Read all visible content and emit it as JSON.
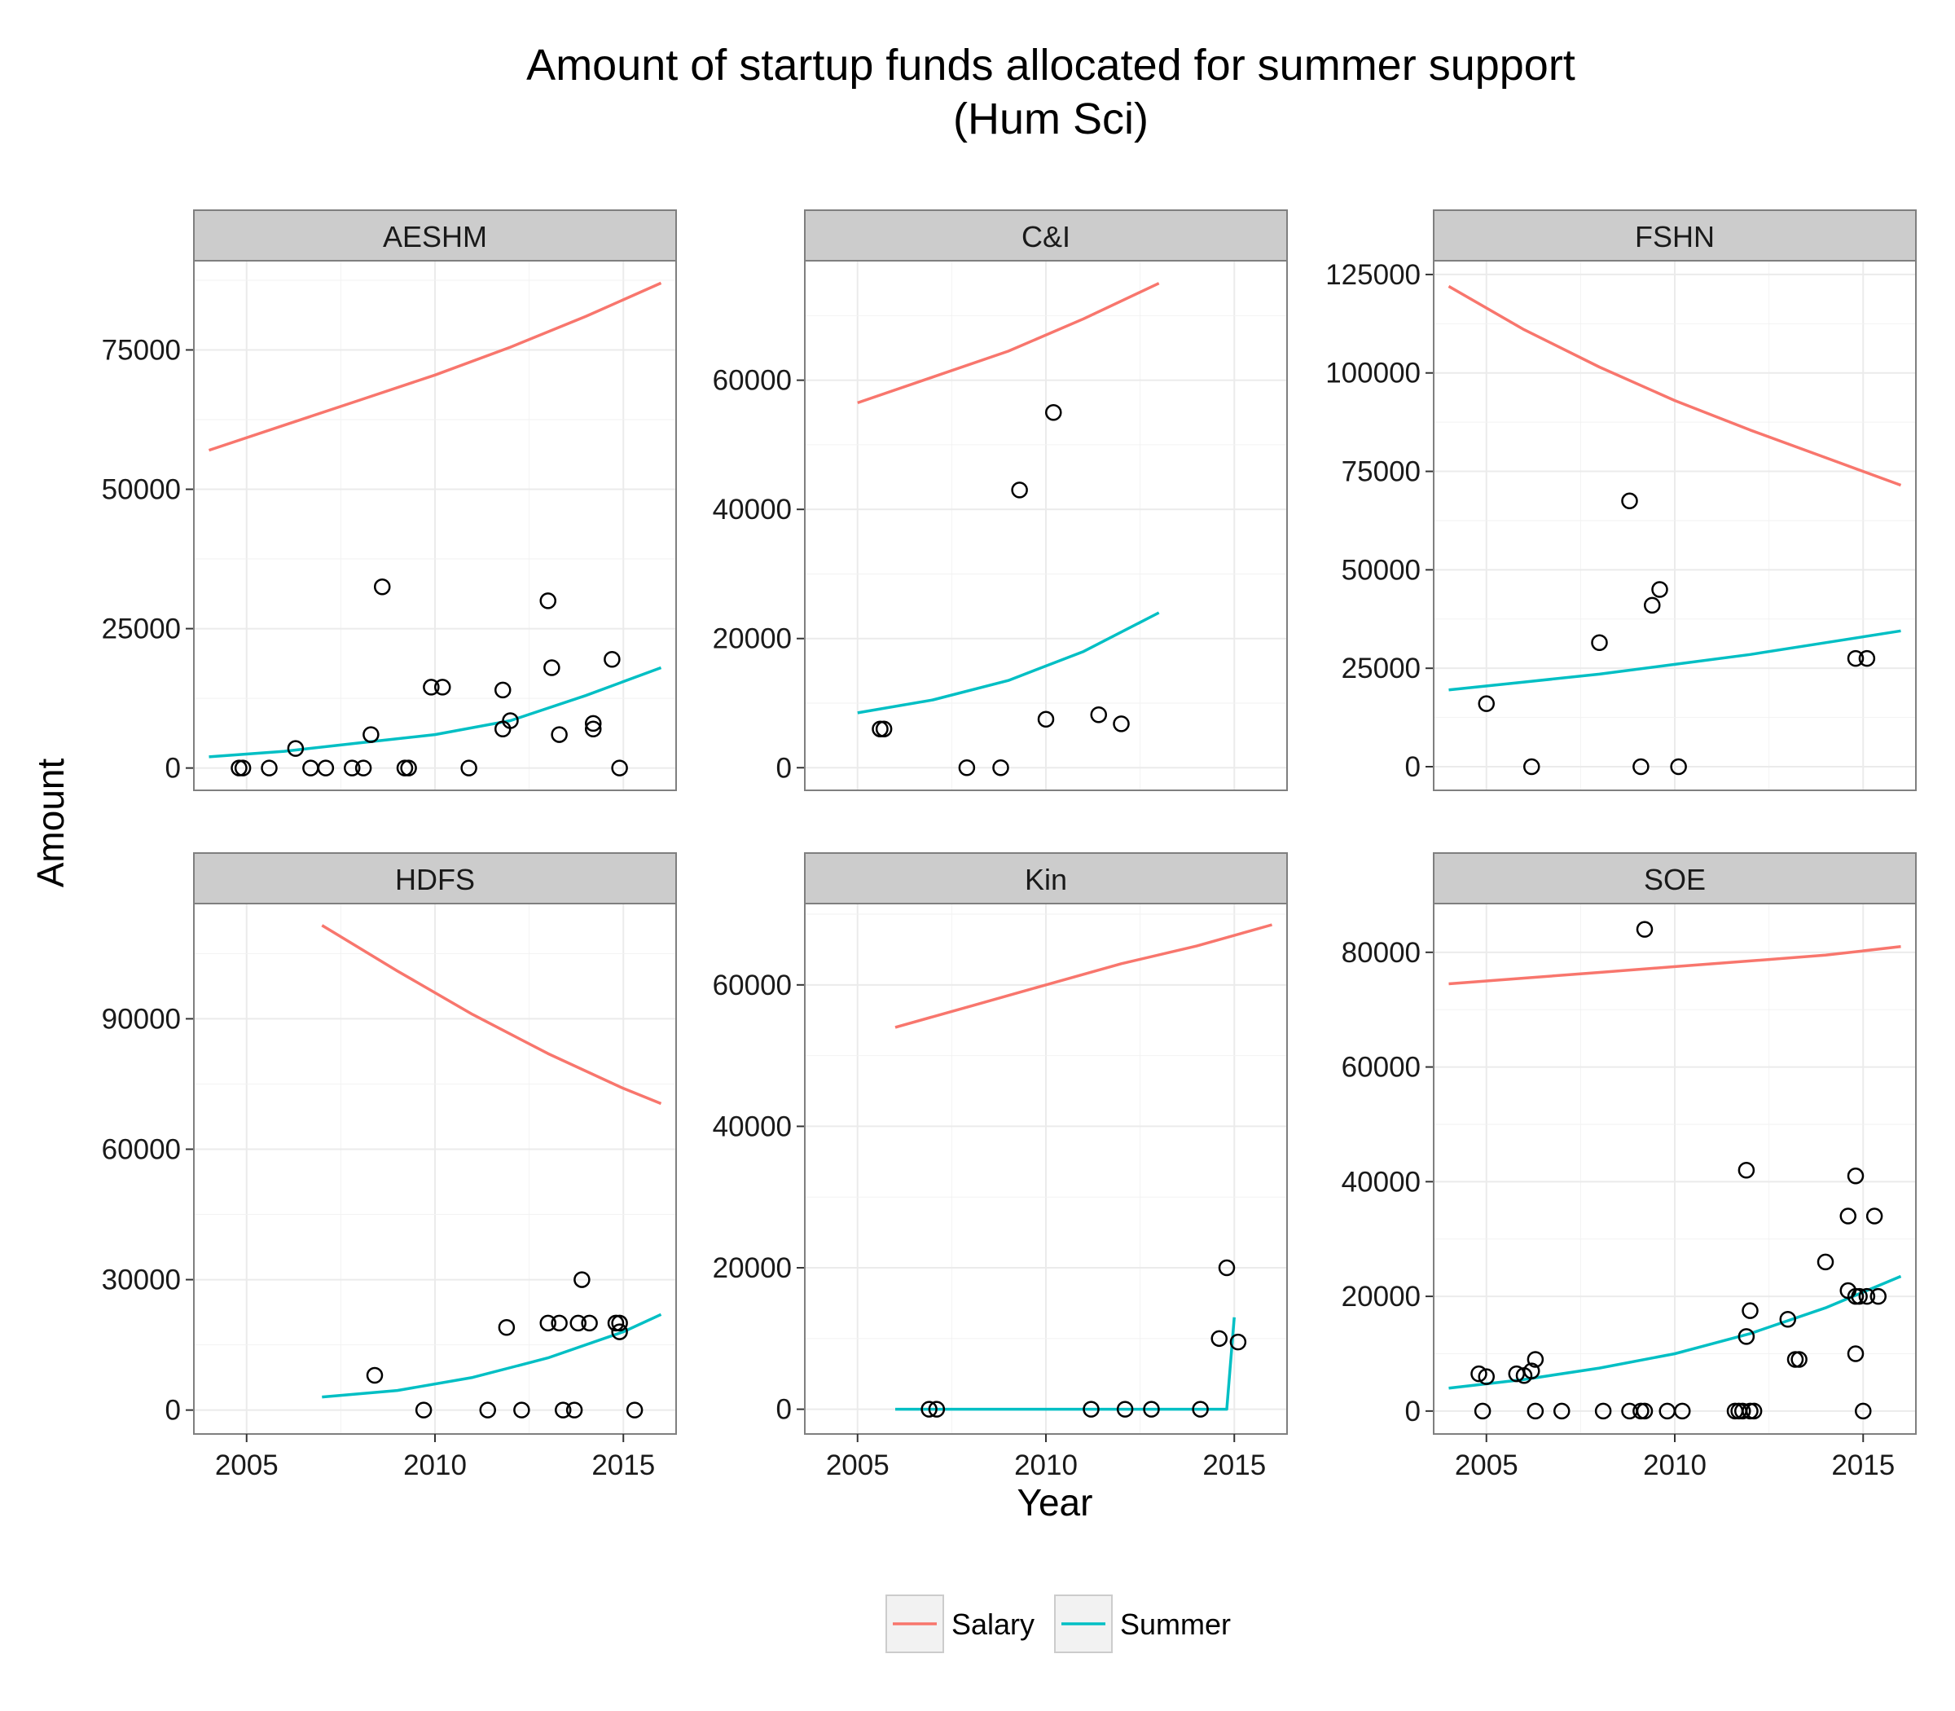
{
  "chart_data": {
    "type": "scatter",
    "title": "Amount of startup funds allocated for summer support",
    "subtitle": "(Hum Sci)",
    "xlabel": "Year",
    "ylabel": "Amount",
    "xlim": [
      2003.6,
      2016.4
    ],
    "x_ticks": [
      2005,
      2010,
      2015
    ],
    "grid": true,
    "legend": {
      "placement": "bottom",
      "entries": [
        {
          "name": "Salary",
          "color": "#F8766D"
        },
        {
          "name": "Summer",
          "color": "#00BFC4"
        }
      ]
    },
    "point_color": "#000000",
    "panels": [
      {
        "name": "AESHM",
        "ylim": [
          -4000,
          91000
        ],
        "y_ticks": [
          0,
          25000,
          50000,
          75000
        ],
        "salary_line": {
          "x": [
            2004,
            2006,
            2008,
            2010,
            2012,
            2014,
            2016
          ],
          "y": [
            57000,
            61500,
            66000,
            70500,
            75500,
            81000,
            87000
          ]
        },
        "summer_line": {
          "x": [
            2004,
            2006,
            2008,
            2010,
            2012,
            2014,
            2016
          ],
          "y": [
            2000,
            3000,
            4500,
            6000,
            8500,
            13000,
            18000
          ]
        },
        "points": [
          {
            "x": 2004.8,
            "y": 0
          },
          {
            "x": 2004.9,
            "y": 0
          },
          {
            "x": 2005.6,
            "y": 0
          },
          {
            "x": 2006.3,
            "y": 3500
          },
          {
            "x": 2006.7,
            "y": 0
          },
          {
            "x": 2007.1,
            "y": 0
          },
          {
            "x": 2007.8,
            "y": 0
          },
          {
            "x": 2008.1,
            "y": 0
          },
          {
            "x": 2008.3,
            "y": 6000
          },
          {
            "x": 2008.6,
            "y": 32500
          },
          {
            "x": 2009.2,
            "y": 0
          },
          {
            "x": 2009.3,
            "y": 0
          },
          {
            "x": 2009.9,
            "y": 14500
          },
          {
            "x": 2010.2,
            "y": 14500
          },
          {
            "x": 2010.9,
            "y": 0
          },
          {
            "x": 2011.8,
            "y": 14000
          },
          {
            "x": 2011.8,
            "y": 7000
          },
          {
            "x": 2012.0,
            "y": 8500
          },
          {
            "x": 2013.0,
            "y": 30000
          },
          {
            "x": 2013.1,
            "y": 18000
          },
          {
            "x": 2013.3,
            "y": 6000
          },
          {
            "x": 2014.2,
            "y": 8000
          },
          {
            "x": 2014.2,
            "y": 7000
          },
          {
            "x": 2014.7,
            "y": 19500
          },
          {
            "x": 2014.9,
            "y": 0
          }
        ]
      },
      {
        "name": "C&I",
        "ylim": [
          -3500,
          78500
        ],
        "y_ticks": [
          0,
          20000,
          40000,
          60000
        ],
        "salary_line": {
          "x": [
            2005,
            2007,
            2009,
            2011,
            2013
          ],
          "y": [
            56500,
            60500,
            64500,
            69500,
            75000
          ]
        },
        "summer_line": {
          "x": [
            2005,
            2007,
            2009,
            2011,
            2013
          ],
          "y": [
            8500,
            10500,
            13500,
            18000,
            24000
          ]
        },
        "points": [
          {
            "x": 2005.6,
            "y": 6000
          },
          {
            "x": 2005.7,
            "y": 6000
          },
          {
            "x": 2007.9,
            "y": 0
          },
          {
            "x": 2008.8,
            "y": 0
          },
          {
            "x": 2009.3,
            "y": 43000
          },
          {
            "x": 2010.0,
            "y": 7500
          },
          {
            "x": 2010.2,
            "y": 55000
          },
          {
            "x": 2011.4,
            "y": 8200
          },
          {
            "x": 2012.0,
            "y": 6800
          }
        ]
      },
      {
        "name": "FSHN",
        "ylim": [
          -6000,
          128500
        ],
        "y_ticks": [
          0,
          25000,
          50000,
          75000,
          100000,
          125000
        ],
        "salary_line": {
          "x": [
            2004,
            2006,
            2008,
            2010,
            2012,
            2014,
            2016
          ],
          "y": [
            122000,
            111000,
            101500,
            93000,
            85500,
            78500,
            71500
          ]
        },
        "summer_line": {
          "x": [
            2004,
            2006,
            2008,
            2010,
            2012,
            2014,
            2016
          ],
          "y": [
            19500,
            21500,
            23500,
            26000,
            28500,
            31500,
            34500
          ]
        },
        "points": [
          {
            "x": 2005.0,
            "y": 16000
          },
          {
            "x": 2006.2,
            "y": 0
          },
          {
            "x": 2008.0,
            "y": 31500
          },
          {
            "x": 2008.8,
            "y": 67500
          },
          {
            "x": 2009.1,
            "y": 0
          },
          {
            "x": 2009.4,
            "y": 41000
          },
          {
            "x": 2009.6,
            "y": 45000
          },
          {
            "x": 2010.1,
            "y": 0
          },
          {
            "x": 2014.8,
            "y": 27500
          },
          {
            "x": 2015.1,
            "y": 27500
          }
        ]
      },
      {
        "name": "HDFS",
        "ylim": [
          -5500,
          116500
        ],
        "y_ticks": [
          0,
          30000,
          60000,
          90000
        ],
        "salary_line": {
          "x": [
            2007,
            2009,
            2011,
            2013,
            2015,
            2016
          ],
          "y": [
            111500,
            101000,
            91000,
            82000,
            74000,
            70500
          ]
        },
        "summer_line": {
          "x": [
            2007,
            2009,
            2011,
            2013,
            2015,
            2016
          ],
          "y": [
            3000,
            4500,
            7500,
            12000,
            18000,
            22000
          ]
        },
        "points": [
          {
            "x": 2008.4,
            "y": 8000
          },
          {
            "x": 2009.7,
            "y": 0
          },
          {
            "x": 2011.4,
            "y": 0
          },
          {
            "x": 2011.9,
            "y": 19000
          },
          {
            "x": 2012.3,
            "y": 0
          },
          {
            "x": 2013.0,
            "y": 20000
          },
          {
            "x": 2013.3,
            "y": 20000
          },
          {
            "x": 2013.4,
            "y": 0
          },
          {
            "x": 2013.7,
            "y": 0
          },
          {
            "x": 2013.8,
            "y": 20000
          },
          {
            "x": 2013.9,
            "y": 30000
          },
          {
            "x": 2014.1,
            "y": 20000
          },
          {
            "x": 2014.8,
            "y": 20000
          },
          {
            "x": 2014.9,
            "y": 20000
          },
          {
            "x": 2014.9,
            "y": 18000
          },
          {
            "x": 2015.3,
            "y": 0
          }
        ]
      },
      {
        "name": "Kin",
        "ylim": [
          -3500,
          71500
        ],
        "y_ticks": [
          0,
          20000,
          40000,
          60000
        ],
        "salary_line": {
          "x": [
            2006,
            2008,
            2010,
            2012,
            2014,
            2016
          ],
          "y": [
            54000,
            57000,
            60000,
            63000,
            65500,
            68500
          ]
        },
        "summer_line": {
          "x": [
            2006,
            2008,
            2010,
            2012,
            2014,
            2014.8,
            2015.0
          ],
          "y": [
            0,
            0,
            0,
            0,
            0,
            0,
            13000
          ]
        },
        "points": [
          {
            "x": 2006.9,
            "y": 0
          },
          {
            "x": 2007.1,
            "y": 0
          },
          {
            "x": 2011.2,
            "y": 0
          },
          {
            "x": 2012.1,
            "y": 0
          },
          {
            "x": 2012.8,
            "y": 0
          },
          {
            "x": 2014.1,
            "y": 0
          },
          {
            "x": 2014.6,
            "y": 10000
          },
          {
            "x": 2014.8,
            "y": 20000
          },
          {
            "x": 2015.1,
            "y": 9500
          }
        ]
      },
      {
        "name": "SOE",
        "ylim": [
          -4000,
          88500
        ],
        "y_ticks": [
          0,
          20000,
          40000,
          60000,
          80000
        ],
        "salary_line": {
          "x": [
            2004,
            2006,
            2008,
            2010,
            2012,
            2014,
            2016
          ],
          "y": [
            74500,
            75500,
            76500,
            77500,
            78500,
            79500,
            81000
          ]
        },
        "summer_line": {
          "x": [
            2004,
            2006,
            2008,
            2010,
            2012,
            2014,
            2016
          ],
          "y": [
            4000,
            5500,
            7500,
            10000,
            13500,
            18000,
            23500
          ]
        },
        "points": [
          {
            "x": 2004.8,
            "y": 6500
          },
          {
            "x": 2004.9,
            "y": 0
          },
          {
            "x": 2005.0,
            "y": 6000
          },
          {
            "x": 2005.8,
            "y": 6500
          },
          {
            "x": 2006.0,
            "y": 6200
          },
          {
            "x": 2006.2,
            "y": 7000
          },
          {
            "x": 2006.3,
            "y": 9000
          },
          {
            "x": 2006.3,
            "y": 0
          },
          {
            "x": 2007.0,
            "y": 0
          },
          {
            "x": 2008.1,
            "y": 0
          },
          {
            "x": 2008.8,
            "y": 0
          },
          {
            "x": 2009.1,
            "y": 0
          },
          {
            "x": 2009.2,
            "y": 0
          },
          {
            "x": 2009.2,
            "y": 84000
          },
          {
            "x": 2009.8,
            "y": 0
          },
          {
            "x": 2010.2,
            "y": 0
          },
          {
            "x": 2011.6,
            "y": 0
          },
          {
            "x": 2011.7,
            "y": 0
          },
          {
            "x": 2011.8,
            "y": 0
          },
          {
            "x": 2011.9,
            "y": 42000
          },
          {
            "x": 2011.9,
            "y": 13000
          },
          {
            "x": 2012.0,
            "y": 17500
          },
          {
            "x": 2012.0,
            "y": 0
          },
          {
            "x": 2012.1,
            "y": 0
          },
          {
            "x": 2013.0,
            "y": 16000
          },
          {
            "x": 2013.2,
            "y": 9000
          },
          {
            "x": 2013.3,
            "y": 9000
          },
          {
            "x": 2014.0,
            "y": 26000
          },
          {
            "x": 2014.6,
            "y": 21000
          },
          {
            "x": 2014.6,
            "y": 34000
          },
          {
            "x": 2014.8,
            "y": 41000
          },
          {
            "x": 2014.8,
            "y": 20000
          },
          {
            "x": 2014.8,
            "y": 10000
          },
          {
            "x": 2014.9,
            "y": 20000
          },
          {
            "x": 2015.0,
            "y": 0
          },
          {
            "x": 2015.1,
            "y": 20000
          },
          {
            "x": 2015.3,
            "y": 34000
          },
          {
            "x": 2015.4,
            "y": 20000
          }
        ]
      }
    ]
  }
}
